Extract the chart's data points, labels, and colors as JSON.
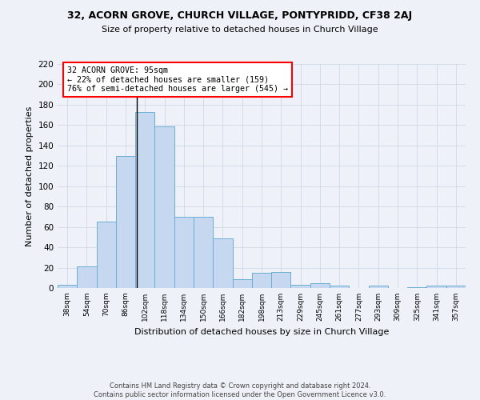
{
  "title1": "32, ACORN GROVE, CHURCH VILLAGE, PONTYPRIDD, CF38 2AJ",
  "title2": "Size of property relative to detached houses in Church Village",
  "xlabel": "Distribution of detached houses by size in Church Village",
  "ylabel": "Number of detached properties",
  "bin_labels": [
    "38sqm",
    "54sqm",
    "70sqm",
    "86sqm",
    "102sqm",
    "118sqm",
    "134sqm",
    "150sqm",
    "166sqm",
    "182sqm",
    "198sqm",
    "213sqm",
    "229sqm",
    "245sqm",
    "261sqm",
    "277sqm",
    "293sqm",
    "309sqm",
    "325sqm",
    "341sqm",
    "357sqm"
  ],
  "bar_heights": [
    3,
    21,
    65,
    130,
    173,
    159,
    70,
    70,
    49,
    9,
    15,
    16,
    3,
    5,
    2,
    0,
    2,
    0,
    1,
    2,
    2
  ],
  "bar_color": "#c5d8f0",
  "bar_edge_color": "#6baed6",
  "grid_color": "#d0d8e8",
  "annotation_box_text": "32 ACORN GROVE: 95sqm\n← 22% of detached houses are smaller (159)\n76% of semi-detached houses are larger (545) →",
  "annotation_box_color": "white",
  "annotation_box_edge_color": "red",
  "footnote1": "Contains HM Land Registry data © Crown copyright and database right 2024.",
  "footnote2": "Contains public sector information licensed under the Open Government Licence v3.0.",
  "ylim": [
    0,
    220
  ],
  "yticks": [
    0,
    20,
    40,
    60,
    80,
    100,
    120,
    140,
    160,
    180,
    200,
    220
  ],
  "background_color": "#eef2f8",
  "figwidth": 6.0,
  "figheight": 5.0,
  "dpi": 100
}
